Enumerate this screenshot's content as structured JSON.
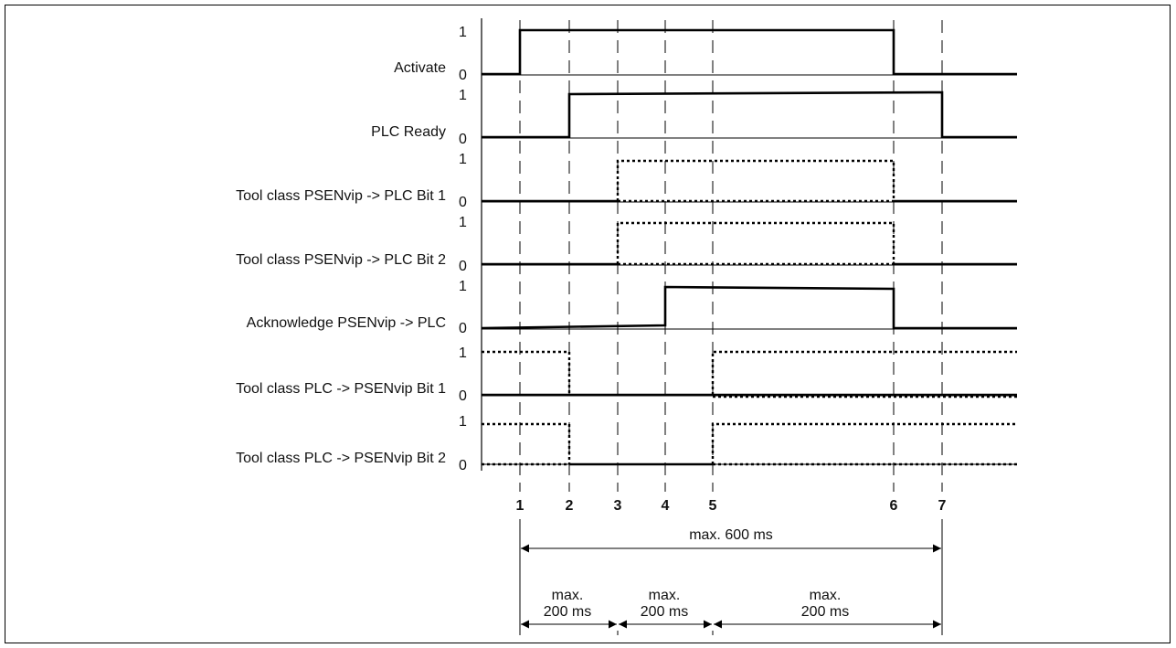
{
  "diagram": {
    "signals": [
      {
        "label": "Activate",
        "level_high": "1",
        "level_low": "0"
      },
      {
        "label": "PLC Ready",
        "level_high": "1",
        "level_low": "0"
      },
      {
        "label": "Tool class PSENvip -> PLC Bit 1",
        "level_high": "1",
        "level_low": "0"
      },
      {
        "label": "Tool class PSENvip -> PLC Bit 2",
        "level_high": "1",
        "level_low": "0"
      },
      {
        "label": "Acknowledge PSENvip -> PLC",
        "level_high": "1",
        "level_low": "0"
      },
      {
        "label": "Tool class PLC -> PSENvip Bit 1",
        "level_high": "1",
        "level_low": "0"
      },
      {
        "label": "Tool class PLC -> PSENvip Bit 2",
        "level_high": "1",
        "level_low": "0"
      }
    ],
    "time_points": [
      "1",
      "2",
      "3",
      "4",
      "5",
      "6",
      "7"
    ],
    "total_duration": "max. 600 ms",
    "intervals": [
      {
        "line1": "max.",
        "line2": "200 ms"
      },
      {
        "line1": "max.",
        "line2": "200 ms"
      },
      {
        "line1": "max.",
        "line2": "200 ms"
      }
    ]
  }
}
